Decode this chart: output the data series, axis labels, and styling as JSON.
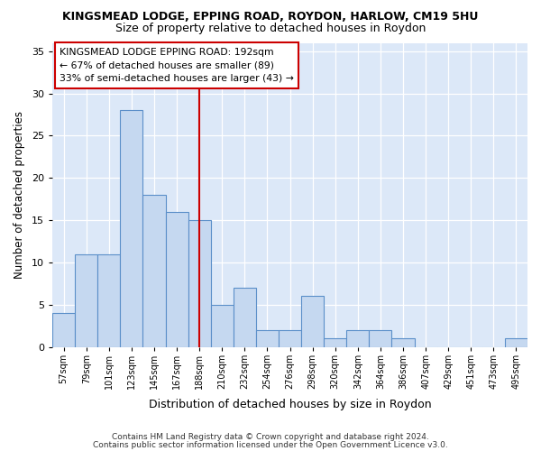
{
  "title": "KINGSMEAD LODGE, EPPING ROAD, ROYDON, HARLOW, CM19 5HU",
  "subtitle": "Size of property relative to detached houses in Roydon",
  "xlabel": "Distribution of detached houses by size in Roydon",
  "ylabel": "Number of detached properties",
  "categories": [
    "57sqm",
    "79sqm",
    "101sqm",
    "123sqm",
    "145sqm",
    "167sqm",
    "188sqm",
    "210sqm",
    "232sqm",
    "254sqm",
    "276sqm",
    "298sqm",
    "320sqm",
    "342sqm",
    "364sqm",
    "386sqm",
    "407sqm",
    "429sqm",
    "451sqm",
    "473sqm",
    "495sqm"
  ],
  "values": [
    4,
    11,
    11,
    28,
    18,
    16,
    15,
    5,
    7,
    2,
    2,
    6,
    1,
    2,
    2,
    1,
    0,
    0,
    0,
    0,
    1
  ],
  "bar_color": "#c5d8f0",
  "bar_edge_color": "#5b8fc9",
  "vline_x_index": 6,
  "vline_color": "#cc0000",
  "annotation_title": "KINGSMEAD LODGE EPPING ROAD: 192sqm",
  "annotation_line1": "← 67% of detached houses are smaller (89)",
  "annotation_line2": "33% of semi-detached houses are larger (43) →",
  "ylim": [
    0,
    36
  ],
  "yticks": [
    0,
    5,
    10,
    15,
    20,
    25,
    30,
    35
  ],
  "footnote1": "Contains HM Land Registry data © Crown copyright and database right 2024.",
  "footnote2": "Contains public sector information licensed under the Open Government Licence v3.0.",
  "plot_bg_color": "#dce8f8",
  "fig_bg_color": "#ffffff",
  "grid_color": "#ffffff"
}
